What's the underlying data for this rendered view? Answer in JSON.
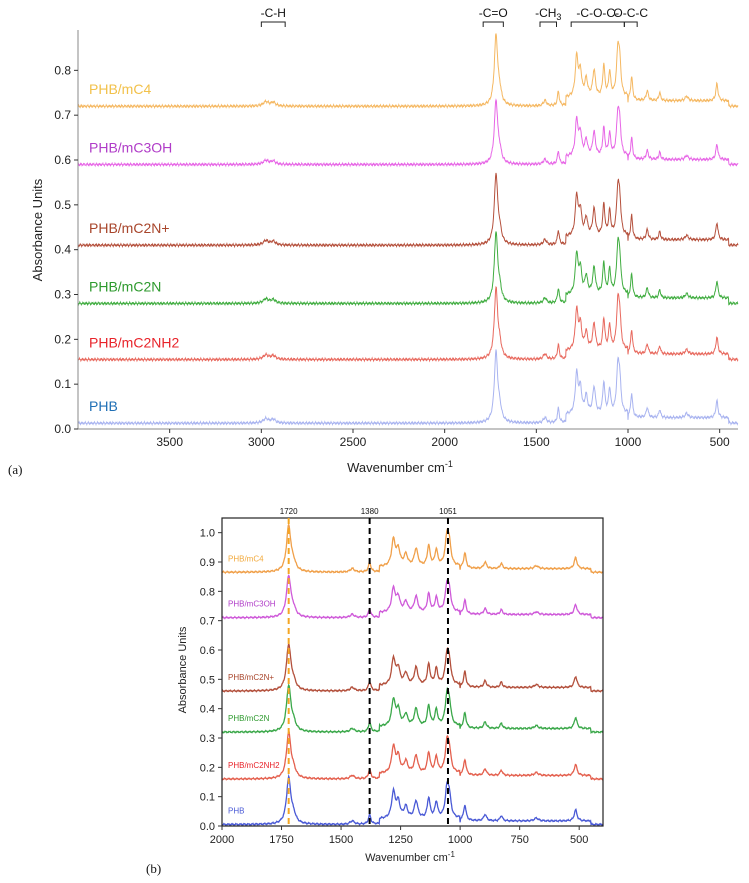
{
  "chart_data": [
    {
      "panel_label": "(a)",
      "type": "line",
      "xlabel": "Wavenumber cm",
      "xlabel_sup": "-1",
      "ylabel": "Absorbance Units",
      "xlim": [
        4000,
        400
      ],
      "ylim": [
        0,
        0.89
      ],
      "x_ticks": [
        3500,
        3000,
        2500,
        2000,
        1500,
        1000,
        500
      ],
      "y_ticks": [
        0.0,
        0.1,
        0.2,
        0.3,
        0.4,
        0.5,
        0.6,
        0.7,
        0.8
      ],
      "x_tick_labels": [
        "3500",
        "3000",
        "2500",
        "2000",
        "1500",
        "1000",
        "500"
      ],
      "y_tick_labels": [
        "0.0",
        "0.1",
        "0.2",
        "0.3",
        "0.4",
        "0.5",
        "0.6",
        "0.7",
        "0.8"
      ],
      "series": [
        {
          "name": "PHB",
          "color": "#1f6fb5",
          "line_color": "#a9b4f0",
          "baseline": 0.013,
          "scale": 1.0
        },
        {
          "name": "PHB/mC2NH2",
          "color": "#e8232a",
          "line_color": "#e8695e",
          "baseline": 0.155,
          "scale": 1.0
        },
        {
          "name": "PHB/mC2N",
          "color": "#2e9a2e",
          "line_color": "#41ad41",
          "baseline": 0.28,
          "scale": 1.0
        },
        {
          "name": "PHB/mC2N+",
          "color": "#a8452b",
          "line_color": "#b5503c",
          "baseline": 0.41,
          "scale": 1.0
        },
        {
          "name": "PHB/mC3OH",
          "color": "#b03cc8",
          "line_color": "#e766e6",
          "baseline": 0.59,
          "scale": 0.9
        },
        {
          "name": "PHB/mC4",
          "color": "#f2c14a",
          "line_color": "#f5b862",
          "baseline": 0.72,
          "scale": 1.0
        }
      ],
      "band_annotations": [
        {
          "label": "-C-H",
          "from": 3000,
          "to": 2870
        },
        {
          "label": "-C=O",
          "from": 1790,
          "to": 1680
        },
        {
          "label": "-CH3",
          "from": 1480,
          "to": 1390
        },
        {
          "label": "-C-O-C-",
          "from": 1310,
          "to": 1020
        },
        {
          "label": "O-C-C",
          "from": 1020,
          "to": 950
        }
      ]
    },
    {
      "panel_label": "(b)",
      "type": "line",
      "xlabel": "Wavenumber cm",
      "xlabel_sup": "-1",
      "ylabel": "Absorbance Units",
      "xlim": [
        2000,
        400
      ],
      "ylim": [
        0,
        1.05
      ],
      "x_ticks": [
        2000,
        1750,
        1500,
        1250,
        1000,
        750,
        500
      ],
      "y_ticks": [
        0.0,
        0.1,
        0.2,
        0.3,
        0.4,
        0.5,
        0.6,
        0.7,
        0.8,
        0.9,
        1.0
      ],
      "x_tick_labels": [
        "2000",
        "1750",
        "1500",
        "1250",
        "1000",
        "750",
        "500"
      ],
      "y_tick_labels": [
        "0.0",
        "0.1",
        "0.2",
        "0.3",
        "0.4",
        "0.5",
        "0.6",
        "0.7",
        "0.8",
        "0.9",
        "1.0"
      ],
      "reference_lines": [
        {
          "x": 1720,
          "label": "1720",
          "color": "#f5a623"
        },
        {
          "x": 1380,
          "label": "1380",
          "color": "#000000"
        },
        {
          "x": 1051,
          "label": "1051",
          "color": "#000000"
        }
      ],
      "series": [
        {
          "name": "PHB",
          "color": "#4a5ad6",
          "baseline": 0.005,
          "scale": 1.0
        },
        {
          "name": "PHB/mC2NH2",
          "color": "#e8232a",
          "line_color": "#e4604e",
          "baseline": 0.16,
          "scale": 1.0
        },
        {
          "name": "PHB/mC2N",
          "color": "#2e9a2e",
          "line_color": "#3ba84a",
          "baseline": 0.32,
          "scale": 1.0
        },
        {
          "name": "PHB/mC2N+",
          "color": "#a8452b",
          "line_color": "#b3503c",
          "baseline": 0.46,
          "scale": 1.0
        },
        {
          "name": "PHB/mC3OH",
          "color": "#b03cc8",
          "line_color": "#cf5ad9",
          "baseline": 0.71,
          "scale": 0.9
        },
        {
          "name": "PHB/mC4",
          "color": "#f2a93b",
          "line_color": "#f0a04a",
          "baseline": 0.865,
          "scale": 1.0
        }
      ]
    }
  ]
}
